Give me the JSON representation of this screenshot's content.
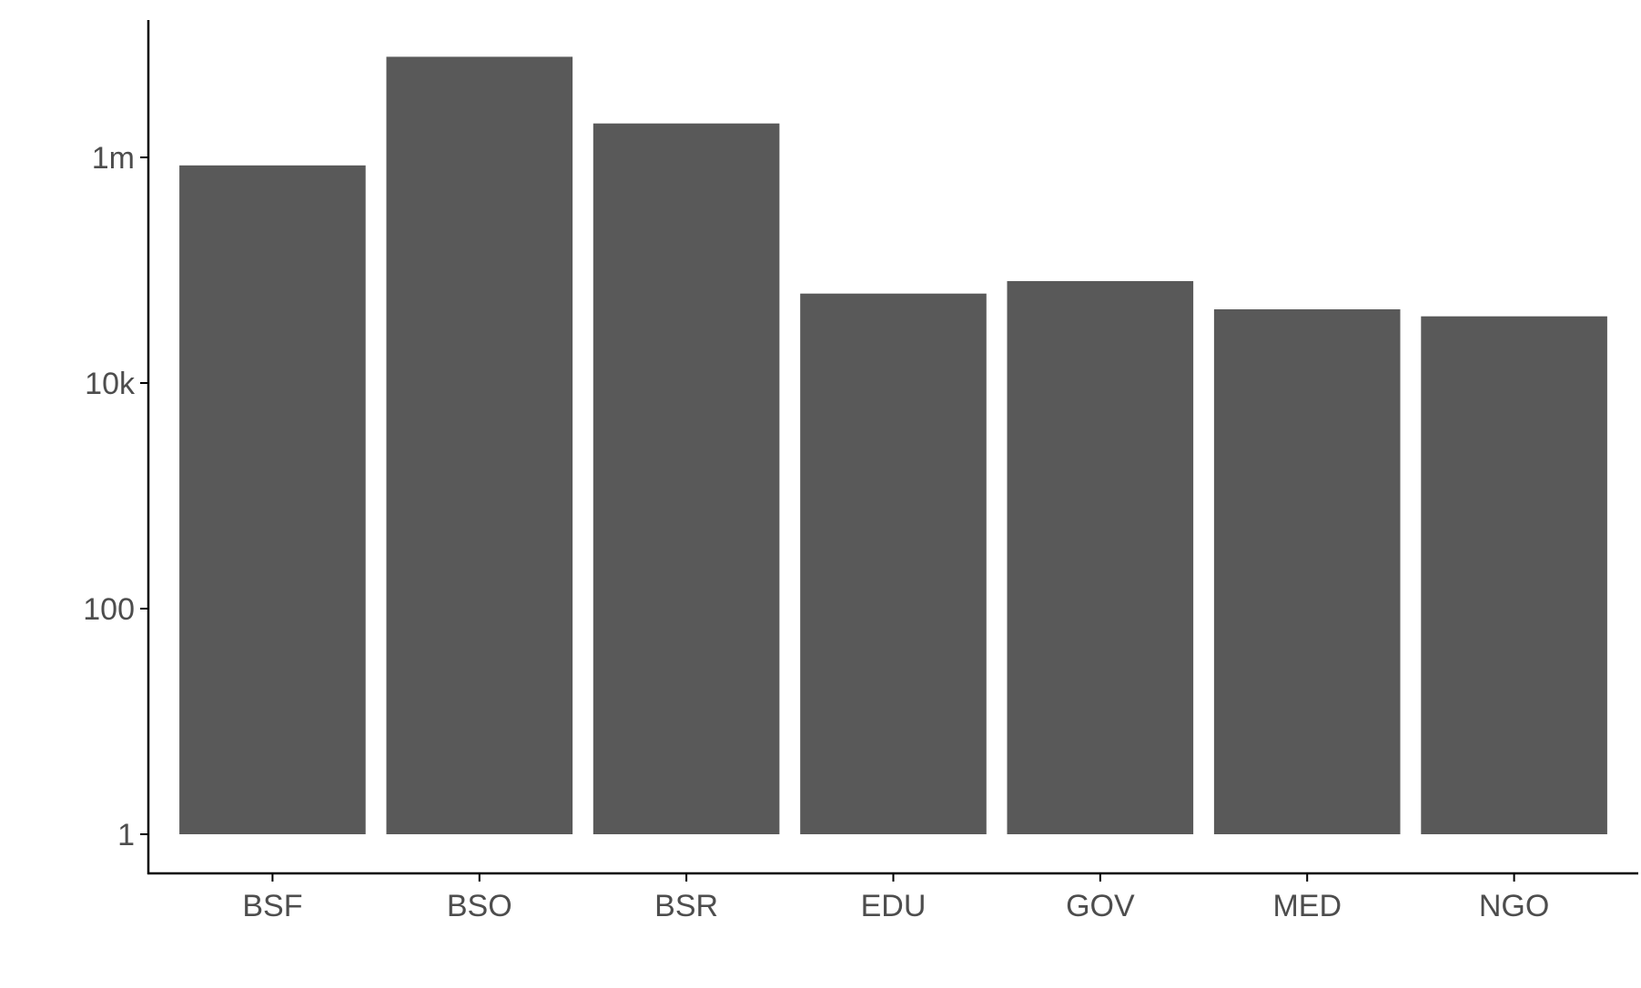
{
  "chart_data": {
    "type": "bar",
    "categories": [
      "BSF",
      "BSO",
      "BSR",
      "EDU",
      "GOV",
      "MED",
      "NGO"
    ],
    "values": [
      850000,
      7800000,
      2000000,
      62000,
      80000,
      45000,
      39000
    ],
    "y_scale": "log10",
    "ylim": [
      0.45,
      30000000
    ],
    "y_ticks": [
      {
        "value": 1,
        "label": "1"
      },
      {
        "value": 100,
        "label": "100"
      },
      {
        "value": 10000,
        "label": "10k"
      },
      {
        "value": 1000000,
        "label": "1m"
      }
    ],
    "title": "",
    "xlabel": "",
    "ylabel": "",
    "grid": false,
    "legend": "none",
    "colors": {
      "bar": "#595959",
      "axis": "#000000",
      "tick_label": "#4d4d4d",
      "background": "#ffffff"
    }
  }
}
